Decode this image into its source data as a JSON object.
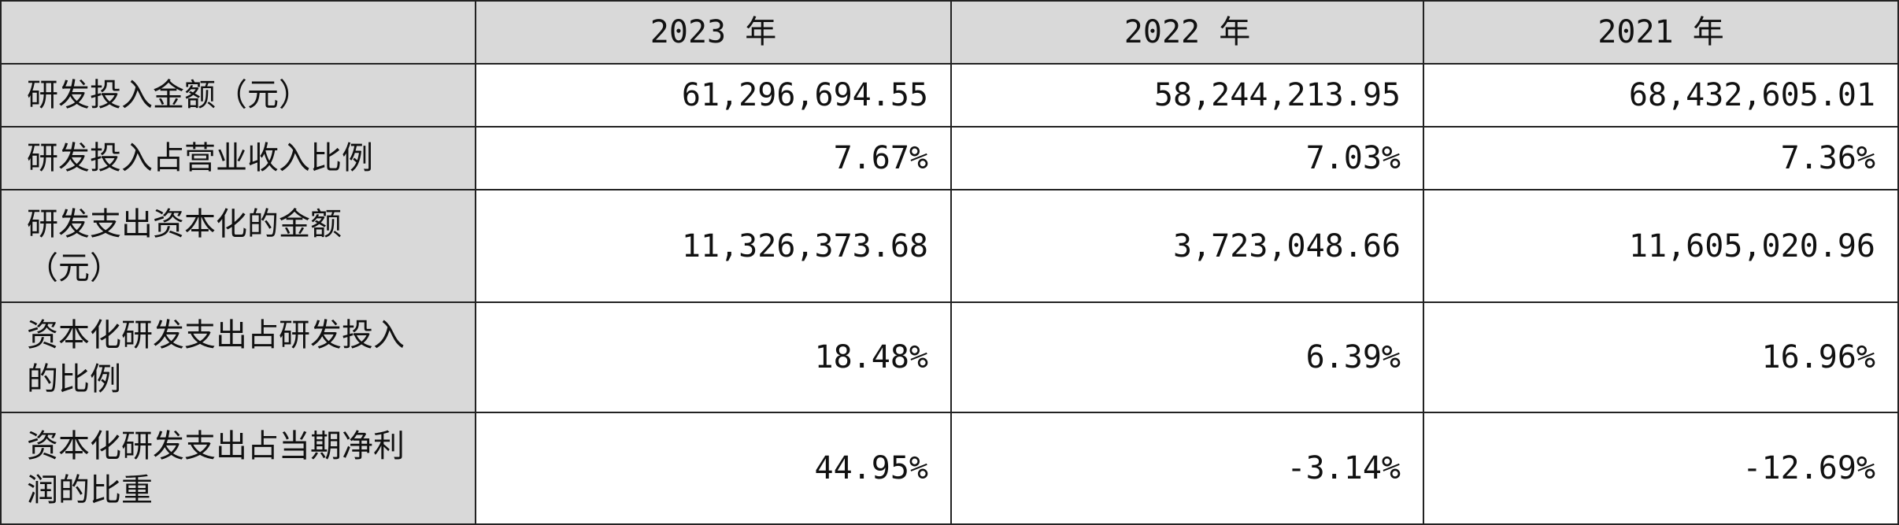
{
  "table": {
    "header": [
      "2023 年",
      "2022 年",
      "2021 年"
    ],
    "rows": [
      {
        "label": [
          "研发投入金额（元）"
        ],
        "values": [
          "61,296,694.55",
          "58,244,213.95",
          "68,432,605.01"
        ]
      },
      {
        "label": [
          "研发投入占营业收入比例"
        ],
        "values": [
          "7.67%",
          "7.03%",
          "7.36%"
        ]
      },
      {
        "label": [
          "研发支出资本化的金额",
          "（元）"
        ],
        "values": [
          "11,326,373.68",
          "3,723,048.66",
          "11,605,020.96"
        ]
      },
      {
        "label": [
          "资本化研发支出占研发投入",
          "的比例"
        ],
        "values": [
          "18.48%",
          "6.39%",
          "16.96%"
        ]
      },
      {
        "label": [
          "资本化研发支出占当期净利",
          "润的比重"
        ],
        "values": [
          "44.95%",
          "-3.14%",
          "-12.69%"
        ]
      }
    ]
  }
}
